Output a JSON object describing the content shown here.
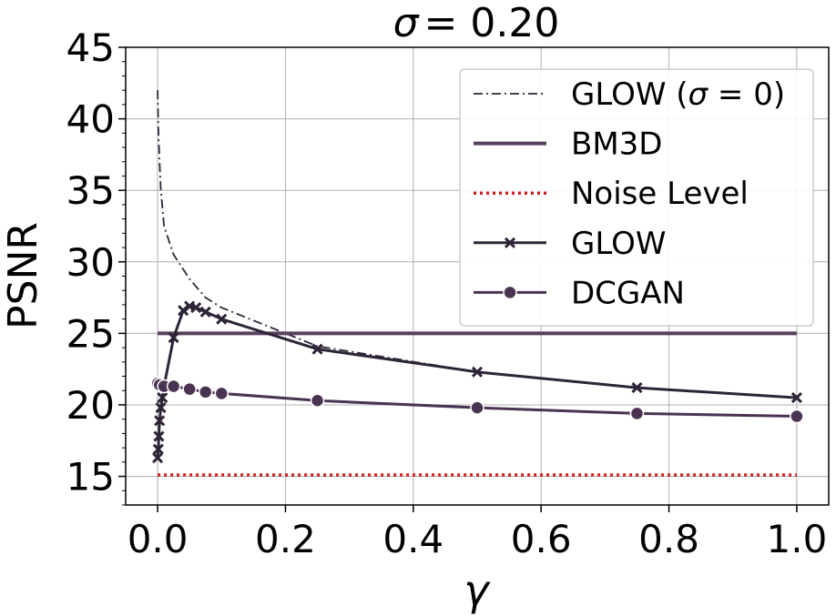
{
  "chart_data": {
    "type": "line",
    "title_prefix": "σ",
    "title_value": "= 0.20",
    "xlabel": "γ",
    "ylabel": "PSNR",
    "xlim": [
      -0.05,
      1.05
    ],
    "ylim": [
      13,
      45
    ],
    "grid": true,
    "legend_position": "top-right",
    "x_ticks": [
      0.0,
      0.2,
      0.4,
      0.6,
      0.8,
      1.0
    ],
    "x_tick_labels": [
      "0.0",
      "0.2",
      "0.4",
      "0.6",
      "0.8",
      "1.0"
    ],
    "y_ticks": [
      15,
      20,
      25,
      30,
      35,
      40,
      45
    ],
    "y_tick_labels": [
      "15",
      "20",
      "25",
      "30",
      "35",
      "40",
      "45"
    ],
    "series": [
      {
        "name": "GLOW (σ = 0)",
        "legend_prefix": "GLOW (",
        "legend_sigma": "σ",
        "legend_suffix": " = 0)",
        "style": "dashdot",
        "color": "#2e2438",
        "x": [
          0.0,
          0.001,
          0.003,
          0.005,
          0.0075,
          0.01,
          0.025,
          0.05,
          0.075,
          0.1,
          0.25,
          0.5,
          0.75,
          1.0
        ],
        "y": [
          42.0,
          39.5,
          37.0,
          35.0,
          33.8,
          32.5,
          30.5,
          28.8,
          27.5,
          26.8,
          24.1,
          22.3,
          21.2,
          20.5
        ]
      },
      {
        "name": "BM3D",
        "style": "solid-thick",
        "color": "#58405e",
        "x": [
          0.0,
          1.0
        ],
        "y": [
          25.0,
          25.0
        ]
      },
      {
        "name": "Noise Level",
        "style": "dotted",
        "color": "#cc1f1f",
        "x": [
          0.0,
          1.0
        ],
        "y": [
          15.1,
          15.1
        ]
      },
      {
        "name": "GLOW",
        "style": "solid-x",
        "color": "#2e2438",
        "x": [
          0.0,
          0.001,
          0.002,
          0.003,
          0.005,
          0.0075,
          0.01,
          0.025,
          0.04,
          0.05,
          0.06,
          0.075,
          0.1,
          0.25,
          0.5,
          0.75,
          1.0
        ],
        "y": [
          16.3,
          16.9,
          17.8,
          18.9,
          19.8,
          20.5,
          21.3,
          24.7,
          26.6,
          26.9,
          26.8,
          26.5,
          26.0,
          23.9,
          22.3,
          21.2,
          20.5
        ]
      },
      {
        "name": "DCGAN",
        "style": "solid-dot",
        "color": "#4a3351",
        "x": [
          0.0,
          0.003,
          0.01,
          0.025,
          0.05,
          0.075,
          0.1,
          0.25,
          0.5,
          0.75,
          1.0
        ],
        "y": [
          21.5,
          21.4,
          21.3,
          21.3,
          21.1,
          20.9,
          20.8,
          20.3,
          19.8,
          19.4,
          19.2
        ]
      }
    ]
  }
}
